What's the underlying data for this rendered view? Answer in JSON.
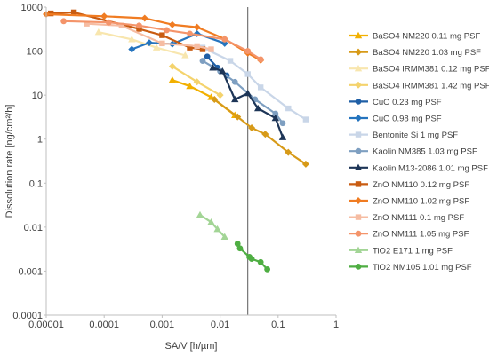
{
  "chart_data": {
    "type": "scatter",
    "xlabel": "SA/V [h/µm]",
    "ylabel": "Dissolution rate [ng/cm²/h]",
    "x_scale": "log",
    "y_scale": "log",
    "xlim": [
      1e-05,
      1
    ],
    "ylim": [
      0.0001,
      1000
    ],
    "x_tick_labels": [
      "0.00001",
      "0.0001",
      "0.001",
      "0.01",
      "0.1",
      "1"
    ],
    "y_tick_labels": [
      "0.0001",
      "0.001",
      "0.01",
      "0.1",
      "1",
      "10",
      "100",
      "1000"
    ],
    "reference_line_x": 0.03,
    "grid": false,
    "legend_position": "right",
    "series": [
      {
        "name": "BaSO4 NM220 0.11 mg PSF",
        "color": "#F2B000",
        "marker": "triangle",
        "points": [
          [
            0.0015,
            22
          ],
          [
            0.003,
            16
          ],
          [
            0.007,
            9
          ],
          [
            0.018,
            3.5
          ]
        ]
      },
      {
        "name": "BaSO4 NM220 1.03 mg PSF",
        "color": "#D79A18",
        "marker": "diamond",
        "points": [
          [
            0.008,
            8
          ],
          [
            0.02,
            3.2
          ],
          [
            0.035,
            1.8
          ],
          [
            0.06,
            1.3
          ],
          [
            0.15,
            0.5
          ],
          [
            0.3,
            0.27
          ]
        ]
      },
      {
        "name": "BaSO4 IRMM381 0.12 mg PSF",
        "color": "#F8E6AE",
        "marker": "triangle",
        "points": [
          [
            8e-05,
            270
          ],
          [
            0.0003,
            185
          ],
          [
            0.0008,
            120
          ],
          [
            0.0025,
            80
          ]
        ]
      },
      {
        "name": "BaSO4 IRMM381 1.42 mg PSF",
        "color": "#F4D36D",
        "marker": "diamond",
        "points": [
          [
            0.0015,
            45
          ],
          [
            0.004,
            20
          ],
          [
            0.01,
            10
          ]
        ]
      },
      {
        "name": "CuO 0.23 mg PSF",
        "color": "#1F5FA6",
        "marker": "circle",
        "points": [
          [
            0.006,
            75
          ],
          [
            0.009,
            42
          ],
          [
            0.013,
            28
          ]
        ]
      },
      {
        "name": "CuO 0.98 mg PSF",
        "color": "#2574BE",
        "marker": "diamond",
        "points": [
          [
            0.0003,
            110
          ],
          [
            0.0006,
            155
          ],
          [
            0.0015,
            145
          ],
          [
            0.004,
            250
          ],
          [
            0.012,
            150
          ]
        ]
      },
      {
        "name": "Bentonite Si 1 mg PSF",
        "color": "#C9D6E8",
        "marker": "square",
        "points": [
          [
            0.005,
            120
          ],
          [
            0.015,
            60
          ],
          [
            0.03,
            30
          ],
          [
            0.05,
            15
          ],
          [
            0.15,
            5
          ],
          [
            0.3,
            2.8
          ]
        ]
      },
      {
        "name": "Kaolin NM385 1.03 mg PSF",
        "color": "#7E9FC1",
        "marker": "circle",
        "points": [
          [
            0.005,
            60
          ],
          [
            0.01,
            35
          ],
          [
            0.018,
            20
          ],
          [
            0.04,
            8
          ],
          [
            0.09,
            3.8
          ],
          [
            0.12,
            2.3
          ]
        ]
      },
      {
        "name": "Kaolin M13-2086 1.01 mg PSF",
        "color": "#1D3557",
        "marker": "triangle",
        "points": [
          [
            0.0075,
            42
          ],
          [
            0.011,
            35
          ],
          [
            0.018,
            8
          ],
          [
            0.03,
            11
          ],
          [
            0.045,
            5
          ],
          [
            0.09,
            3
          ],
          [
            0.12,
            1.1
          ]
        ]
      },
      {
        "name": "ZnO NM110 0.12 mg PSF",
        "color": "#C95C12",
        "marker": "square",
        "points": [
          [
            1.2e-05,
            720
          ],
          [
            3e-05,
            760
          ],
          [
            0.0004,
            320
          ],
          [
            0.001,
            230
          ],
          [
            0.003,
            120
          ],
          [
            0.005,
            110
          ]
        ]
      },
      {
        "name": "ZnO NM110 1.02 mg PSF",
        "color": "#F07C22",
        "marker": "diamond",
        "points": [
          [
            1e-05,
            690
          ],
          [
            0.0001,
            620
          ],
          [
            0.0005,
            560
          ],
          [
            0.0015,
            400
          ],
          [
            0.004,
            350
          ],
          [
            0.012,
            190
          ],
          [
            0.03,
            90
          ],
          [
            0.05,
            62
          ]
        ]
      },
      {
        "name": "ZnO NM111 0.1 mg PSF",
        "color": "#F6BCA2",
        "marker": "square",
        "points": [
          [
            5e-05,
            420
          ],
          [
            0.0002,
            380
          ],
          [
            0.001,
            150
          ],
          [
            0.004,
            130
          ],
          [
            0.007,
            110
          ]
        ]
      },
      {
        "name": "ZnO NM111 1.05 mg PSF",
        "color": "#F4946A",
        "marker": "circle",
        "points": [
          [
            2e-05,
            480
          ],
          [
            0.00012,
            450
          ],
          [
            0.0004,
            380
          ],
          [
            0.0012,
            300
          ],
          [
            0.003,
            250
          ],
          [
            0.012,
            185
          ],
          [
            0.03,
            100
          ],
          [
            0.05,
            65
          ]
        ]
      },
      {
        "name": "TiO2 E171 1 mg PSF",
        "color": "#A3D596",
        "marker": "triangle",
        "points": [
          [
            0.0045,
            0.019
          ],
          [
            0.007,
            0.013
          ],
          [
            0.009,
            0.009
          ],
          [
            0.012,
            0.006
          ]
        ]
      },
      {
        "name": "TiO2 NM105 1.01 mg PSF",
        "color": "#4FAE43",
        "marker": "circle",
        "points": [
          [
            0.02,
            0.0042
          ],
          [
            0.022,
            0.0033
          ],
          [
            0.032,
            0.0021
          ],
          [
            0.035,
            0.0019
          ],
          [
            0.05,
            0.0016
          ],
          [
            0.065,
            0.0011
          ]
        ]
      }
    ]
  }
}
